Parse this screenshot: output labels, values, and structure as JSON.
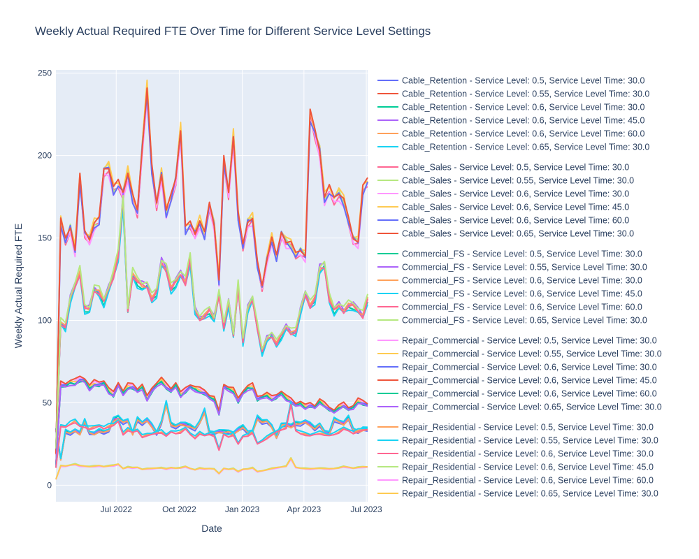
{
  "chart_data": {
    "type": "line",
    "title": "Weekly Actual Required FTE Over Time for Different Service Level Settings",
    "xlabel": "Date",
    "ylabel": "Weekly Actual Required FTE",
    "x_range": [
      "2022-04-04",
      "2023-07-03"
    ],
    "y_range": [
      -10,
      252
    ],
    "x_ticks": [
      {
        "date": "2022-07-01",
        "label": "Jul 2022"
      },
      {
        "date": "2022-10-01",
        "label": "Oct 2022"
      },
      {
        "date": "2023-01-01",
        "label": "Jan 2023"
      },
      {
        "date": "2023-04-01",
        "label": "Apr 2023"
      },
      {
        "date": "2023-07-01",
        "label": "Jul 2023"
      }
    ],
    "y_ticks": [
      0,
      50,
      100,
      150,
      200,
      250
    ],
    "grid": true,
    "legend_position": "right",
    "background_color": "#E5ECF6",
    "grid_color": "#FFFFFF",
    "x": [
      "2022-04-04",
      "2022-04-11",
      "2022-04-18",
      "2022-04-25",
      "2022-05-02",
      "2022-05-09",
      "2022-05-16",
      "2022-05-23",
      "2022-05-30",
      "2022-06-06",
      "2022-06-13",
      "2022-06-20",
      "2022-06-27",
      "2022-07-04",
      "2022-07-11",
      "2022-07-18",
      "2022-07-25",
      "2022-08-01",
      "2022-08-08",
      "2022-08-15",
      "2022-08-22",
      "2022-08-29",
      "2022-09-05",
      "2022-09-12",
      "2022-09-19",
      "2022-09-26",
      "2022-10-03",
      "2022-10-10",
      "2022-10-17",
      "2022-10-24",
      "2022-10-31",
      "2022-11-07",
      "2022-11-14",
      "2022-11-21",
      "2022-11-28",
      "2022-12-05",
      "2022-12-12",
      "2022-12-19",
      "2022-12-26",
      "2023-01-02",
      "2023-01-09",
      "2023-01-16",
      "2023-01-23",
      "2023-01-30",
      "2023-02-06",
      "2023-02-13",
      "2023-02-20",
      "2023-02-27",
      "2023-03-06",
      "2023-03-13",
      "2023-03-20",
      "2023-03-27",
      "2023-04-03",
      "2023-04-10",
      "2023-04-17",
      "2023-04-24",
      "2023-05-01",
      "2023-05-08",
      "2023-05-15",
      "2023-05-22",
      "2023-05-29",
      "2023-06-05",
      "2023-06-12",
      "2023-06-19",
      "2023-06-26",
      "2023-07-03"
    ],
    "series_groups": [
      {
        "profile": [
          1,
          0.46,
          0.96,
          0.93,
          0.98,
          0.92,
          1.15,
          0.94,
          0.92,
          0.97,
          0.95,
          0.98,
          1.17,
          1.2,
          1.13,
          1.16,
          0.92,
          1.18,
          1.11,
          1.17,
          1.06,
          0.93,
          1.13,
          1.46,
          1.08,
          1.05,
          1.1,
          1.08,
          1.05,
          1.01,
          1.13,
          1.32,
          0.94,
          0.94,
          0.96,
          0.95,
          0.96,
          0.93,
          0.99,
          1.04,
          0.95,
          0.96,
          1.2,
          1.13,
          1.15,
          1.05,
          0.86,
          1.08,
          1.09,
          1.05,
          1.1,
          1.1,
          1.14,
          1.08,
          1.01,
          1.09,
          0.95,
          0.92,
          1.18,
          1.14,
          1.1,
          1.2,
          1.0,
          0.95,
          1.0,
          1.0
        ],
        "series": [
          {
            "name": "Cable_Retention - Service Level: 0.5, Service Level Time: 30.0",
            "color": "#636EFA",
            "scale": 33
          },
          {
            "name": "Cable_Retention - Service Level: 0.55, Service Level Time: 30.0",
            "color": "#EF553B",
            "scale": 34
          },
          {
            "name": "Cable_Retention - Service Level: 0.6, Service Level Time: 30.0",
            "color": "#00CC96",
            "scale": 34.5
          },
          {
            "name": "Cable_Retention - Service Level: 0.6, Service Level Time: 45.0",
            "color": "#AB63FA",
            "scale": 34
          },
          {
            "name": "Cable_Retention - Service Level: 0.6, Service Level Time: 60.0",
            "color": "#FFA15A",
            "scale": 33.5
          },
          {
            "name": "Cable_Retention - Service Level: 0.65, Service Level Time: 30.0",
            "color": "#19D3F3",
            "scale": 35
          }
        ]
      },
      {
        "profile": [
          0.11,
          0.92,
          0.85,
          0.9,
          0.82,
          1.07,
          0.88,
          0.86,
          0.91,
          0.92,
          1.1,
          1.11,
          1.03,
          1.05,
          1.02,
          1.09,
          1.0,
          0.95,
          1.18,
          1.38,
          1.1,
          0.98,
          1.09,
          0.95,
          1.0,
          1.07,
          1.24,
          0.89,
          0.91,
          0.88,
          0.92,
          0.87,
          0.98,
          0.91,
          0.71,
          1.13,
          1.02,
          1.22,
          0.94,
          0.83,
          0.92,
          0.93,
          0.77,
          0.69,
          0.79,
          0.86,
          0.79,
          0.88,
          0.85,
          0.84,
          0.8,
          0.82,
          0.8,
          1.29,
          1.23,
          1.17,
          1.0,
          1.03,
          1.0,
          1.02,
          0.99,
          0.92,
          0.86,
          0.85,
          1.03,
          1.06
        ],
        "series": [
          {
            "name": "Cable_Sales - Service Level: 0.5, Service Level Time: 30.0",
            "color": "#FF6692",
            "scale": 172
          },
          {
            "name": "Cable_Sales - Service Level: 0.55, Service Level Time: 30.0",
            "color": "#B6E880",
            "scale": 174
          },
          {
            "name": "Cable_Sales - Service Level: 0.6, Service Level Time: 30.0",
            "color": "#FF97FF",
            "scale": 171
          },
          {
            "name": "Cable_Sales - Service Level: 0.6, Service Level Time: 45.0",
            "color": "#FECB52",
            "scale": 176
          },
          {
            "name": "Cable_Sales - Service Level: 0.6, Service Level Time: 60.0",
            "color": "#636EFA",
            "scale": 173
          },
          {
            "name": "Cable_Sales - Service Level: 0.65, Service Level Time: 30.0",
            "color": "#EF553B",
            "scale": 175
          }
        ]
      },
      {
        "profile": [
          0.22,
          0.98,
          0.95,
          1.12,
          1.2,
          1.28,
          1.06,
          1.06,
          1.18,
          1.16,
          1.1,
          1.18,
          1.26,
          1.38,
          1.72,
          1.05,
          1.27,
          1.22,
          1.2,
          1.2,
          1.12,
          1.16,
          1.34,
          1.3,
          1.18,
          1.22,
          1.27,
          1.22,
          1.36,
          1.05,
          1.0,
          1.02,
          1.05,
          1.0,
          1.15,
          0.95,
          1.1,
          0.9,
          1.2,
          0.86,
          1.06,
          1.12,
          0.95,
          0.8,
          0.88,
          0.9,
          0.85,
          0.9,
          0.95,
          0.92,
          0.92,
          1.05,
          1.15,
          1.08,
          1.12,
          1.3,
          1.32,
          1.12,
          1.05,
          1.08,
          1.05,
          1.08,
          1.08,
          1.05,
          1.02,
          1.12
        ],
        "series": [
          {
            "name": "Commercial_FS - Service Level: 0.5, Service Level Time: 30.0",
            "color": "#00CC96",
            "scale": 100
          },
          {
            "name": "Commercial_FS - Service Level: 0.55, Service Level Time: 30.0",
            "color": "#AB63FA",
            "scale": 102
          },
          {
            "name": "Commercial_FS - Service Level: 0.6, Service Level Time: 30.0",
            "color": "#FFA15A",
            "scale": 101
          },
          {
            "name": "Commercial_FS - Service Level: 0.6, Service Level Time: 45.0",
            "color": "#19D3F3",
            "scale": 99
          },
          {
            "name": "Commercial_FS - Service Level: 0.6, Service Level Time: 60.0",
            "color": "#FF6692",
            "scale": 100.5
          },
          {
            "name": "Commercial_FS - Service Level: 0.65, Service Level Time: 30.0",
            "color": "#B6E880",
            "scale": 103
          }
        ]
      },
      {
        "profile": [
          0.2,
          0.98,
          0.97,
          1.0,
          1.0,
          1.03,
          1.02,
          0.95,
          0.99,
          0.98,
          1.0,
          0.92,
          0.88,
          0.98,
          0.9,
          0.96,
          0.96,
          0.92,
          0.96,
          0.84,
          0.92,
          0.98,
          1.02,
          0.96,
          0.92,
          0.98,
          0.88,
          0.92,
          0.96,
          0.94,
          0.92,
          0.9,
          0.86,
          0.84,
          0.7,
          0.96,
          0.94,
          0.92,
          0.82,
          0.9,
          0.95,
          0.96,
          0.84,
          0.86,
          0.88,
          0.84,
          0.86,
          0.9,
          0.85,
          0.82,
          0.78,
          0.8,
          0.76,
          0.78,
          0.76,
          0.82,
          0.78,
          0.74,
          0.72,
          0.76,
          0.78,
          0.74,
          0.76,
          0.82,
          0.8,
          0.78
        ],
        "series": [
          {
            "name": "Repair_Commercial - Service Level: 0.5, Service Level Time: 30.0",
            "color": "#FF97FF",
            "scale": 63
          },
          {
            "name": "Repair_Commercial - Service Level: 0.55, Service Level Time: 30.0",
            "color": "#FECB52",
            "scale": 62.5
          },
          {
            "name": "Repair_Commercial - Service Level: 0.6, Service Level Time: 30.0",
            "color": "#636EFA",
            "scale": 62
          },
          {
            "name": "Repair_Commercial - Service Level: 0.6, Service Level Time: 45.0",
            "color": "#EF553B",
            "scale": 64
          },
          {
            "name": "Repair_Commercial - Service Level: 0.6, Service Level Time: 60.0",
            "color": "#00CC96",
            "scale": 61.5
          },
          {
            "name": "Repair_Commercial - Service Level: 0.65, Service Level Time: 30.0",
            "color": "#AB63FA",
            "scale": 61
          }
        ]
      },
      {
        "profile": [
          0.3,
          1.0,
          0.98,
          1.04,
          1.08,
          1.0,
          0.98,
          0.96,
          0.98,
          1.0,
          0.96,
          1.0,
          1.02,
          1.08,
          0.86,
          0.94,
          0.9,
          0.92,
          0.82,
          0.85,
          0.86,
          0.88,
          0.9,
          0.84,
          0.9,
          0.88,
          0.9,
          0.96,
          0.86,
          0.8,
          0.88,
          0.84,
          0.86,
          0.84,
          0.6,
          0.86,
          0.82,
          0.86,
          0.7,
          0.82,
          0.84,
          0.9,
          0.7,
          0.74,
          0.8,
          0.86,
          0.9,
          0.94,
          0.98,
          1.38,
          0.92,
          0.88,
          0.86,
          0.84,
          0.86,
          0.88,
          0.86,
          0.84,
          0.86,
          0.9,
          0.96,
          0.92,
          0.88,
          0.92,
          0.94,
          0.94
        ],
        "series": [
          {
            "name": "Repair_Residential - Service Level: 0.5, Service Level Time: 30.0",
            "color": "#FFA15A",
            "scale": 36
          },
          {
            "name": "Repair_Residential - Service Level: 0.55, Service Level Time: 30.0",
            "color": "#19D3F3",
            "scale": 37
          },
          {
            "name": "Repair_Residential - Service Level: 0.6, Service Level Time: 30.0",
            "color": "#FF6692",
            "scale": 35.5
          },
          {
            "name": "Repair_Residential - Service Level: 0.6, Service Level Time: 45.0",
            "color": "#B6E880",
            "scale": 12
          },
          {
            "name": "Repair_Residential - Service Level: 0.6, Service Level Time: 60.0",
            "color": "#FF97FF",
            "scale": 11.5
          },
          {
            "name": "Repair_Residential - Service Level: 0.65, Service Level Time: 30.0",
            "color": "#FECB52",
            "scale": 11.8
          }
        ]
      }
    ]
  }
}
